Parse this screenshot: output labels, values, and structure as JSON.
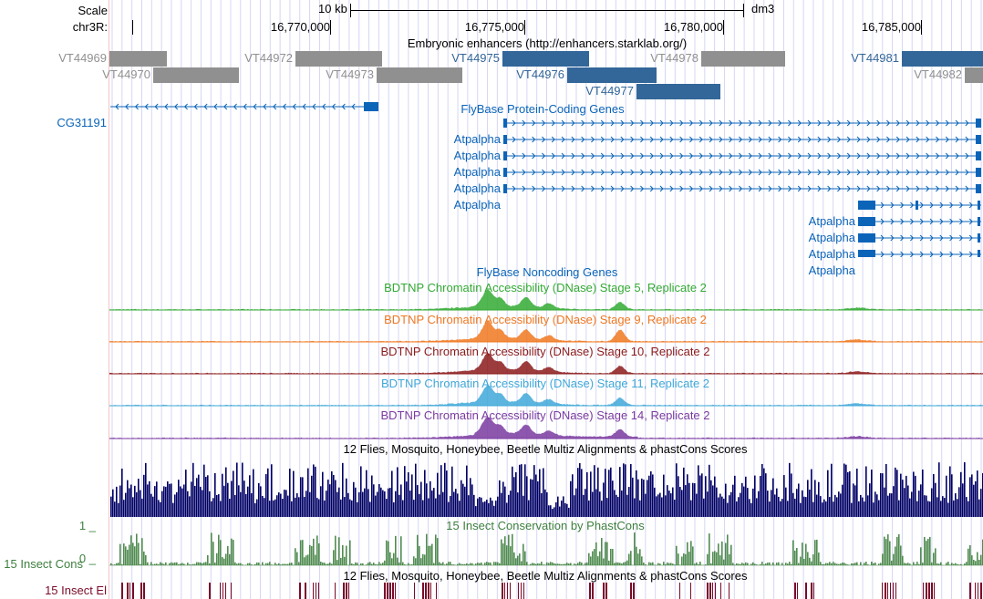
{
  "ruler": {
    "scale_label": "Scale",
    "scale_bar_label": "10 kb",
    "assembly": "dm3",
    "chrom_label": "chr3R:",
    "ticks": [
      "16,770,000",
      "16,775,000",
      "16,780,000",
      "16,785,000"
    ]
  },
  "enhancers": {
    "title": "Embryonic enhancers (http://enhancers.starklab.org/)",
    "items": [
      {
        "name": "VT44969",
        "color": "#909090"
      },
      {
        "name": "VT44972",
        "color": "#909090"
      },
      {
        "name": "VT44975",
        "color": "#336699"
      },
      {
        "name": "VT44978",
        "color": "#909090"
      },
      {
        "name": "VT44981",
        "color": "#336699"
      },
      {
        "name": "VT44970",
        "color": "#909090"
      },
      {
        "name": "VT44973",
        "color": "#909090"
      },
      {
        "name": "VT44976",
        "color": "#336699"
      },
      {
        "name": "VT44982",
        "color": "#909090"
      },
      {
        "name": "VT44977",
        "color": "#336699"
      }
    ]
  },
  "protein_genes": {
    "title": "FlyBase Protein-Coding Genes",
    "color": "#0b64b8",
    "genes": [
      "CG31191",
      "Atpalpha",
      "Atpalpha",
      "Atpalpha",
      "Atpalpha",
      "Atpalpha",
      "Atpalpha",
      "Atpalpha",
      "Atpalpha",
      "Atpalpha"
    ]
  },
  "noncoding_genes": {
    "title": "FlyBase Noncoding Genes"
  },
  "dnase_tracks": [
    {
      "title": "BDTNP Chromatin Accessibility (DNase) Stage 5, Replicate 2",
      "color": "#33aa33"
    },
    {
      "title": "BDTNP Chromatin Accessibility (DNase) Stage 9, Replicate 2",
      "color": "#f07820"
    },
    {
      "title": "BDTNP Chromatin Accessibility (DNase) Stage 10, Replicate 2",
      "color": "#8b1a1a"
    },
    {
      "title": "BDTNP Chromatin Accessibility (DNase) Stage 11, Replicate 2",
      "color": "#40a8d8"
    },
    {
      "title": "BDTNP Chromatin Accessibility (DNase) Stage 14, Replicate 2",
      "color": "#7a3aa0"
    }
  ],
  "multiz": {
    "title": "12 Flies, Mosquito, Honeybee, Beetle Multiz Alignments & phastCons Scores",
    "color": "#000066"
  },
  "phastcons": {
    "title": "15 Insect Conservation by PhastCons",
    "side_label": "15 Insect Cons",
    "ymax_label": "1 _",
    "ymin_label": "0 _",
    "color": "#3e7f3e"
  },
  "elements": {
    "title": "12 Flies, Mosquito, Honeybee, Beetle Multiz Alignments & phastCons Scores",
    "side_label": "15 Insect El",
    "color": "#7a0b2a"
  }
}
